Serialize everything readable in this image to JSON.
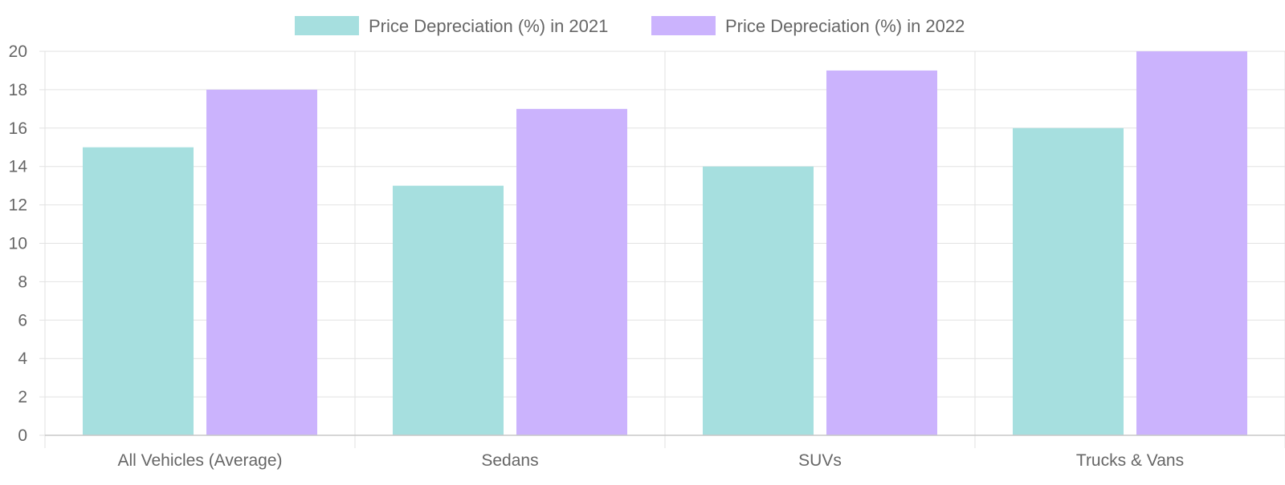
{
  "chart_data": {
    "type": "bar",
    "categories": [
      "All Vehicles (Average)",
      "Sedans",
      "SUVs",
      "Trucks & Vans"
    ],
    "series": [
      {
        "name": "Price Depreciation (%) in 2021",
        "values": [
          15,
          13,
          14,
          16
        ],
        "color": "#a6dfdf"
      },
      {
        "name": "Price Depreciation (%) in 2022",
        "values": [
          18,
          17,
          19,
          20
        ],
        "color": "#cbb3fd"
      }
    ],
    "title": "",
    "xlabel": "",
    "ylabel": "",
    "ylim": [
      0,
      20
    ],
    "yticks": [
      0,
      2,
      4,
      6,
      8,
      10,
      12,
      14,
      16,
      18,
      20
    ],
    "grid": true,
    "legend_position": "top"
  }
}
